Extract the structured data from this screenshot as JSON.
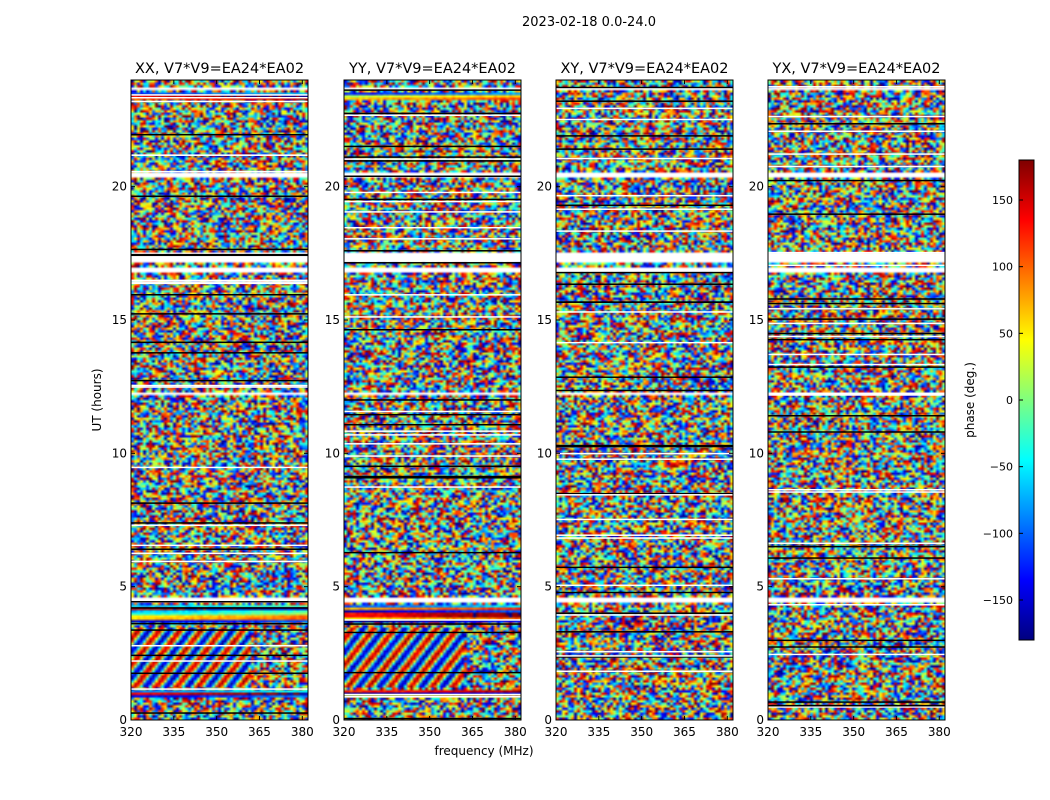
{
  "chart_data": {
    "type": "heatmap",
    "title": "2023-02-18 0.0-24.0",
    "xlabel": "frequency (MHz)",
    "ylabel": "UT (hours)",
    "xlim": [
      320,
      382
    ],
    "ylim": [
      0,
      24
    ],
    "x_ticks": [
      320,
      335,
      350,
      365,
      380
    ],
    "y_ticks": [
      0,
      5,
      10,
      15,
      20
    ],
    "colorbar": {
      "label": "phase (deg.)",
      "range": [
        -180,
        180
      ],
      "ticks": [
        150,
        100,
        50,
        0,
        -50,
        -100,
        -150
      ],
      "tick_labels": [
        "150",
        "100",
        "50",
        "0",
        "−50",
        "−100",
        "−150"
      ],
      "colormap": "jet",
      "colors": [
        "#00007f",
        "#0000ff",
        "#007fff",
        "#00ffff",
        "#7fff7f",
        "#ffff00",
        "#ff7f00",
        "#ff0000",
        "#7f0000"
      ]
    },
    "flagged_ut_bands_hours": [
      [
        4.5,
        4.65
      ],
      [
        12.2,
        12.35
      ],
      [
        16.8,
        17.05
      ],
      [
        17.2,
        17.6
      ],
      [
        20.4,
        20.55
      ],
      [
        23.65,
        23.75
      ]
    ],
    "panels": [
      {
        "name": "XX",
        "title": "XX, V7*V9=EA24*EA02"
      },
      {
        "name": "YY",
        "title": "YY, V7*V9=EA24*EA02"
      },
      {
        "name": "XY",
        "title": "XY, V7*V9=EA24*EA02"
      },
      {
        "name": "YX",
        "title": "YX, V7*V9=EA24*EA02"
      }
    ]
  }
}
